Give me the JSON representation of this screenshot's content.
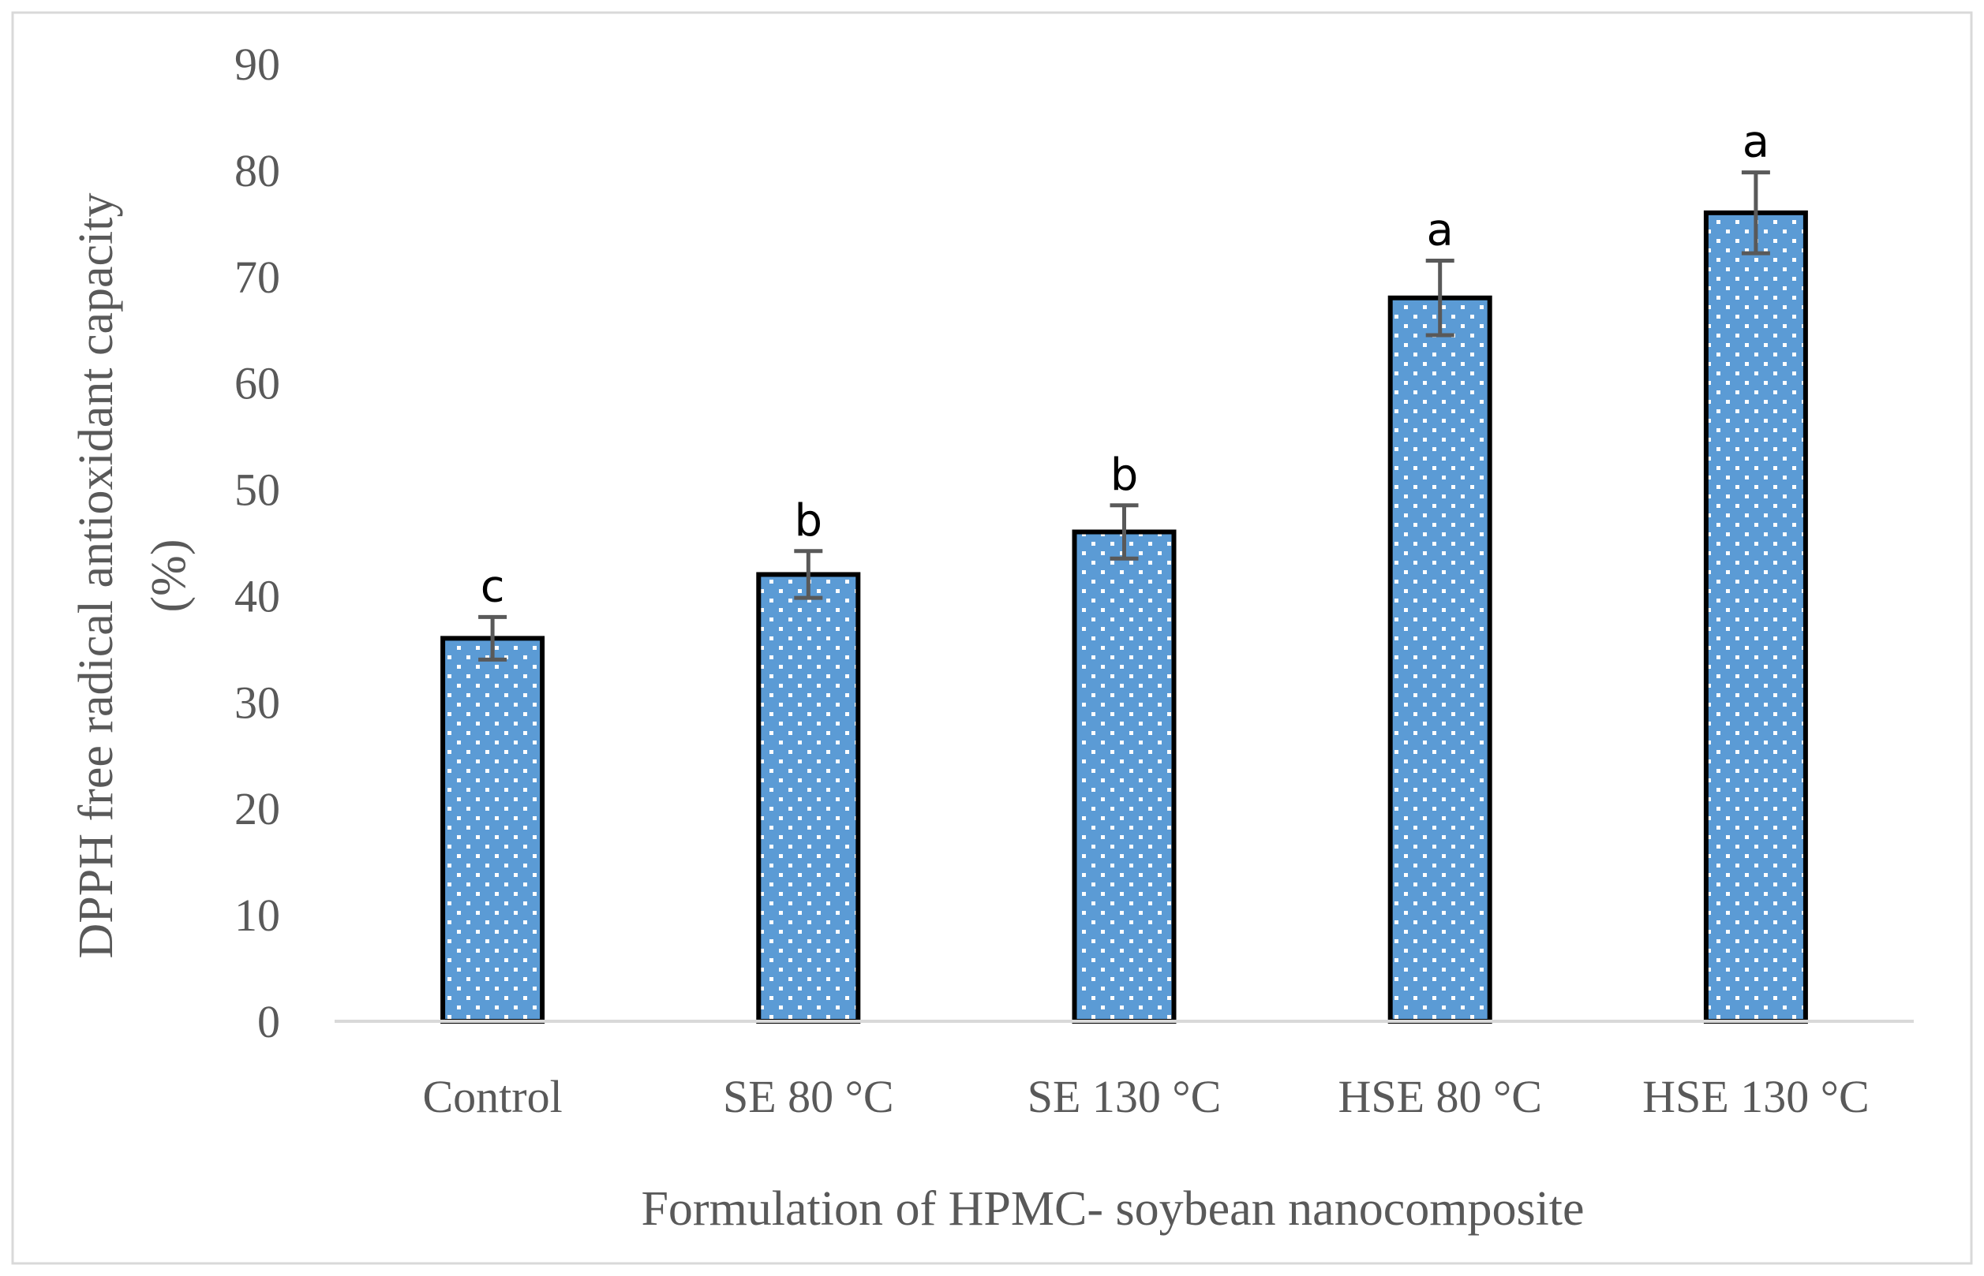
{
  "chart_data": {
    "type": "bar",
    "title": "",
    "xlabel": "Formulation of HPMC- soybean nanocomposite",
    "ylabel_lines": [
      "DPPH free radical antioxidant capacity",
      "(%)"
    ],
    "categories": [
      "Control",
      "SE 80 °C",
      "SE 130 °C",
      "HSE 80 °C",
      "HSE 130 °C"
    ],
    "values": [
      36,
      42,
      46,
      68,
      76
    ],
    "error_bars": [
      2,
      2.2,
      2.5,
      3.5,
      3.8
    ],
    "significance_letters": [
      "c",
      "b",
      "b",
      "a",
      "a"
    ],
    "ylim": [
      0,
      90
    ],
    "yticks": [
      "0",
      "10",
      "20",
      "30",
      "40",
      "50",
      "60",
      "70",
      "80",
      "90"
    ],
    "grid": false,
    "legend": "none",
    "colors": {
      "bar_fill": "#5b9bd5",
      "bar_pattern_dot": "#ffffff",
      "bar_outline": "#000000",
      "error_bar": "#595959",
      "axis_line": "#d9d9d9",
      "frame": "#d9d9d9",
      "text": "#595959"
    }
  }
}
